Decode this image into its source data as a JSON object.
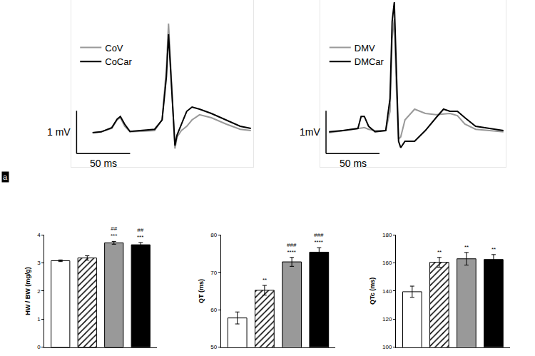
{
  "panel_label": "a",
  "chart_data": [
    {
      "type": "line",
      "tick_labels": false,
      "grid": false,
      "legend": "upper left",
      "xlim": [
        -20,
        150
      ],
      "ylim": [
        -0.8,
        3.1
      ],
      "xticks": [],
      "yticks": [],
      "x": [
        0,
        8,
        18,
        23,
        26,
        30,
        35,
        45,
        58,
        65,
        69,
        71,
        74,
        77,
        79,
        83,
        88,
        93,
        100,
        111,
        125,
        138,
        148
      ],
      "series": [
        {
          "name": "CoV",
          "color": "#999999",
          "values": [
            0,
            0.02,
            0.1,
            0.3,
            0.35,
            0.15,
            0.02,
            0.03,
            0.05,
            0.3,
            1.5,
            2.55,
            1.2,
            -0.37,
            -0.1,
            0.05,
            0.15,
            0.3,
            0.42,
            0.35,
            0.2,
            0.08,
            0.05
          ]
        },
        {
          "name": "CoCar",
          "color": "#000000",
          "values": [
            0,
            0.02,
            0.12,
            0.32,
            0.38,
            0.2,
            0.03,
            0.05,
            0.08,
            0.3,
            1.3,
            2.3,
            1.0,
            -0.3,
            -0.05,
            0.2,
            0.5,
            0.6,
            0.55,
            0.45,
            0.3,
            0.15,
            0.1
          ]
        }
      ],
      "scale_bars": [
        {
          "axis": "x",
          "length": 50,
          "label": "50 ms"
        },
        {
          "axis": "y",
          "length": 1,
          "label": "1 mV"
        }
      ]
    },
    {
      "type": "line",
      "tick_labels": false,
      "grid": false,
      "legend": "upper left",
      "xlim": [
        -8,
        165
      ],
      "ylim": [
        -0.8,
        3.1
      ],
      "xticks": [],
      "yticks": [],
      "x": [
        0,
        13,
        27,
        30,
        33,
        37,
        43,
        53,
        57,
        59,
        61,
        63,
        65,
        67,
        71,
        80,
        90,
        100,
        107,
        113,
        120,
        127,
        137,
        150,
        163
      ],
      "series": [
        {
          "name": "DMV",
          "color": "#999999",
          "values": [
            0,
            0.05,
            0.1,
            0.11,
            0.12,
            0.08,
            0.05,
            0.05,
            0.5,
            2.2,
            2.65,
            1.0,
            -0.15,
            -0.1,
            0.3,
            0.55,
            0.45,
            0.42,
            0.44,
            0.45,
            0.4,
            0.2,
            0.08,
            0.05,
            0.02
          ]
        },
        {
          "name": "DMCar",
          "color": "#000000",
          "values": [
            0.02,
            0.05,
            0.1,
            0.38,
            0.38,
            0.15,
            0.02,
            0.05,
            0.8,
            2.6,
            3.05,
            1.4,
            -0.2,
            -0.35,
            -0.2,
            -0.2,
            0.05,
            0.35,
            0.55,
            0.5,
            0.5,
            0.35,
            0.15,
            0.1,
            0.05
          ]
        }
      ],
      "scale_bars": [
        {
          "axis": "x",
          "length": 50,
          "label": "50 ms"
        },
        {
          "axis": "y",
          "length": 1,
          "label": "1mV"
        }
      ]
    },
    {
      "type": "bar",
      "y_label": "HW / BW (mg/g)",
      "grid": false,
      "tick_labels": "y",
      "categories": [
        null,
        null,
        null,
        null
      ],
      "ylim": [
        0,
        4
      ],
      "yticks": [
        0,
        1,
        2,
        3,
        4
      ],
      "series": [
        {
          "color": "#ffffff",
          "values": [
            3.08,
            null,
            null,
            null
          ],
          "errors": [
            0.03,
            null,
            null,
            null
          ]
        },
        {
          "color": "#ffffff",
          "marker": "hatched",
          "values": [
            null,
            3.18,
            null,
            null
          ],
          "errors": [
            null,
            0.08,
            null,
            null
          ]
        },
        {
          "color": "#999999",
          "values": [
            null,
            null,
            3.72,
            null
          ],
          "errors": [
            null,
            null,
            0.05,
            null
          ],
          "annotation": [
            "##",
            "***"
          ]
        },
        {
          "color": "#000000",
          "values": [
            null,
            null,
            null,
            3.65
          ],
          "errors": [
            null,
            null,
            null,
            0.08
          ],
          "annotation": [
            "##",
            "***"
          ]
        }
      ]
    },
    {
      "type": "bar",
      "y_label": "QT (ms)",
      "grid": false,
      "tick_labels": "y",
      "categories": [
        null,
        null,
        null,
        null
      ],
      "ylim": [
        50,
        80
      ],
      "yticks": [
        50,
        60,
        70,
        80
      ],
      "series": [
        {
          "color": "#ffffff",
          "values": [
            57.8,
            null,
            null,
            null
          ],
          "errors": [
            1.6,
            null,
            null,
            null
          ]
        },
        {
          "color": "#ffffff",
          "marker": "hatched",
          "values": [
            null,
            65.2,
            null,
            null
          ],
          "errors": [
            null,
            1.3,
            null,
            null
          ],
          "annotation": [
            "**"
          ]
        },
        {
          "color": "#999999",
          "values": [
            null,
            null,
            72.8,
            null
          ],
          "errors": [
            null,
            null,
            1.2,
            null
          ],
          "annotation": [
            "###",
            "****"
          ]
        },
        {
          "color": "#000000",
          "values": [
            null,
            null,
            null,
            75.4
          ],
          "errors": [
            null,
            null,
            null,
            1.2
          ],
          "annotation": [
            "###",
            "****"
          ]
        }
      ]
    },
    {
      "type": "bar",
      "y_label": "QTc (ms)",
      "grid": false,
      "tick_labels": "y",
      "categories": [
        null,
        null,
        null,
        null
      ],
      "ylim": [
        100,
        180
      ],
      "yticks": [
        100,
        120,
        140,
        160,
        180
      ],
      "series": [
        {
          "color": "#ffffff",
          "values": [
            139.5,
            null,
            null,
            null
          ],
          "errors": [
            4,
            null,
            null,
            null
          ]
        },
        {
          "color": "#ffffff",
          "marker": "hatched",
          "values": [
            null,
            160.5,
            null,
            null
          ],
          "errors": [
            null,
            3.5,
            null,
            null
          ],
          "annotation": [
            "**"
          ]
        },
        {
          "color": "#999999",
          "values": [
            null,
            null,
            163,
            null
          ],
          "errors": [
            null,
            null,
            4.5,
            null
          ],
          "annotation": [
            "**"
          ]
        },
        {
          "color": "#000000",
          "values": [
            null,
            null,
            null,
            162.5
          ],
          "errors": [
            null,
            null,
            null,
            3.5
          ],
          "annotation": [
            "**"
          ]
        }
      ]
    }
  ]
}
